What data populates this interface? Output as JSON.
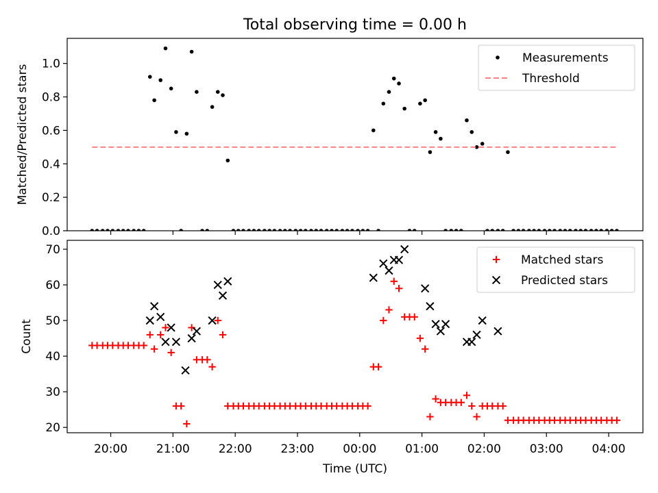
{
  "figure": {
    "title": "Total observing time = 0.00 h"
  },
  "chart_data": [
    {
      "type": "scatter",
      "ylabel": "Matched/Predicted stars",
      "xlabel": "",
      "ylim": [
        0,
        1.15
      ],
      "xlim": [
        -0.7,
        8.55
      ],
      "yticks": [
        0.0,
        0.2,
        0.4,
        0.6,
        0.8,
        1.0
      ],
      "ytick_labels": [
        "0.0",
        "0.2",
        "0.4",
        "0.6",
        "0.8",
        "1.0"
      ],
      "xticks": [
        0,
        1,
        2,
        3,
        4,
        5,
        6,
        7,
        8
      ],
      "legend": {
        "position": "top-right",
        "entries": [
          "Measurements",
          "Threshold"
        ]
      },
      "grid": false,
      "series": [
        {
          "name": "Measurements",
          "marker": "dot",
          "color": "#000000",
          "x": [
            -0.3,
            -0.22,
            -0.13,
            -0.05,
            0.03,
            0.12,
            0.2,
            0.28,
            0.37,
            0.45,
            0.53,
            0.63,
            0.7,
            0.8,
            0.88,
            0.97,
            1.05,
            1.13,
            1.22,
            1.3,
            1.38,
            1.47,
            1.55,
            1.63,
            1.72,
            1.8,
            1.88,
            1.97,
            2.05,
            2.13,
            2.22,
            2.3,
            2.38,
            2.47,
            2.55,
            2.63,
            2.72,
            2.8,
            2.88,
            2.97,
            3.05,
            3.13,
            3.22,
            3.3,
            3.38,
            3.47,
            3.55,
            3.63,
            3.72,
            3.8,
            3.88,
            3.97,
            4.05,
            4.13,
            4.22,
            4.3,
            4.38,
            4.47,
            4.55,
            4.63,
            4.72,
            4.8,
            4.88,
            4.97,
            5.05,
            5.13,
            5.22,
            5.3,
            5.38,
            5.47,
            5.55,
            5.63,
            5.72,
            5.8,
            5.88,
            5.97,
            6.05,
            6.13,
            6.22,
            6.3,
            6.38,
            6.47,
            6.55,
            6.63,
            6.72,
            6.8,
            6.88,
            6.97,
            7.05,
            7.13,
            7.22,
            7.3,
            7.38,
            7.47,
            7.55,
            7.63,
            7.72,
            7.8,
            7.88,
            7.97,
            8.05,
            8.13
          ],
          "y": [
            0.0,
            0.0,
            0.0,
            0.0,
            0.0,
            0.0,
            0.0,
            0.0,
            0.0,
            0.0,
            0.0,
            0.92,
            0.78,
            0.9,
            1.09,
            0.85,
            0.59,
            0.0,
            0.58,
            1.07,
            0.83,
            0.0,
            0.0,
            0.74,
            0.83,
            0.81,
            0.42,
            0.0,
            0.0,
            0.0,
            0.0,
            0.0,
            0.0,
            0.0,
            0.0,
            0.0,
            0.0,
            0.0,
            0.0,
            0.0,
            0.0,
            0.0,
            0.0,
            0.0,
            0.0,
            0.0,
            0.0,
            0.0,
            0.0,
            0.0,
            0.0,
            0.0,
            0.0,
            0.0,
            0.6,
            0.0,
            0.76,
            0.83,
            0.91,
            0.88,
            0.73,
            0.0,
            0.0,
            0.76,
            0.78,
            0.47,
            0.59,
            0.55,
            0.0,
            0.0,
            0.0,
            0.0,
            0.66,
            0.59,
            0.5,
            0.52,
            0.0,
            0.0,
            0.0,
            0.0,
            0.47,
            0.0,
            0.0,
            0.0,
            0.0,
            0.0,
            0.0,
            0.0,
            0.0,
            0.0,
            0.0,
            0.0,
            0.0,
            0.0,
            0.0,
            0.0,
            0.0,
            0.0,
            0.0,
            0.0,
            0.0,
            0.0
          ]
        },
        {
          "name": "Threshold",
          "style": "dashed",
          "color": "#ff8080",
          "x": [
            -0.3,
            8.13
          ],
          "y": [
            0.5,
            0.5
          ]
        }
      ]
    },
    {
      "type": "scatter",
      "ylabel": "Count",
      "xlabel": "Time (UTC)",
      "ylim": [
        18.5,
        72.5
      ],
      "xlim": [
        -0.7,
        8.55
      ],
      "yticks": [
        20,
        30,
        40,
        50,
        60,
        70
      ],
      "ytick_labels": [
        "20",
        "30",
        "40",
        "50",
        "60",
        "70"
      ],
      "xticks": [
        0,
        1,
        2,
        3,
        4,
        5,
        6,
        7,
        8
      ],
      "xtick_labels": [
        "20:00",
        "21:00",
        "22:00",
        "23:00",
        "00:00",
        "01:00",
        "02:00",
        "03:00",
        "04:00"
      ],
      "legend": {
        "position": "top-right",
        "entries": [
          "Matched stars",
          "Predicted stars"
        ]
      },
      "grid": false,
      "series": [
        {
          "name": "Matched stars",
          "marker": "plus",
          "color": "#ff0000",
          "x": [
            -0.3,
            -0.22,
            -0.13,
            -0.05,
            0.03,
            0.12,
            0.2,
            0.28,
            0.37,
            0.45,
            0.53,
            0.63,
            0.7,
            0.8,
            0.88,
            0.97,
            1.05,
            1.13,
            1.22,
            1.3,
            1.38,
            1.47,
            1.55,
            1.63,
            1.72,
            1.8,
            1.88,
            1.97,
            2.05,
            2.13,
            2.22,
            2.3,
            2.38,
            2.47,
            2.55,
            2.63,
            2.72,
            2.8,
            2.88,
            2.97,
            3.05,
            3.13,
            3.22,
            3.3,
            3.38,
            3.47,
            3.55,
            3.63,
            3.72,
            3.8,
            3.88,
            3.97,
            4.05,
            4.13,
            4.22,
            4.3,
            4.38,
            4.47,
            4.55,
            4.63,
            4.72,
            4.8,
            4.88,
            4.97,
            5.05,
            5.13,
            5.22,
            5.3,
            5.38,
            5.47,
            5.55,
            5.63,
            5.72,
            5.8,
            5.88,
            5.97,
            6.05,
            6.13,
            6.22,
            6.3,
            6.38,
            6.47,
            6.55,
            6.63,
            6.72,
            6.8,
            6.88,
            6.97,
            7.05,
            7.13,
            7.22,
            7.3,
            7.38,
            7.47,
            7.55,
            7.63,
            7.72,
            7.8,
            7.88,
            7.97,
            8.05,
            8.13
          ],
          "y": [
            43,
            43,
            43,
            43,
            43,
            43,
            43,
            43,
            43,
            43,
            43,
            46,
            42,
            46,
            48,
            41,
            26,
            26,
            21,
            48,
            39,
            39,
            39,
            37,
            50,
            46,
            26,
            26,
            26,
            26,
            26,
            26,
            26,
            26,
            26,
            26,
            26,
            26,
            26,
            26,
            26,
            26,
            26,
            26,
            26,
            26,
            26,
            26,
            26,
            26,
            26,
            26,
            26,
            26,
            37,
            37,
            50,
            53,
            61,
            59,
            51,
            51,
            51,
            45,
            42,
            23,
            28,
            27,
            27,
            27,
            27,
            27,
            29,
            26,
            23,
            26,
            26,
            26,
            26,
            26,
            22,
            22,
            22,
            22,
            22,
            22,
            22,
            22,
            22,
            22,
            22,
            22,
            22,
            22,
            22,
            22,
            22,
            22,
            22,
            22,
            22,
            22
          ]
        },
        {
          "name": "Predicted stars",
          "marker": "x",
          "color": "#000000",
          "x": [
            0.63,
            0.7,
            0.8,
            0.88,
            0.97,
            1.05,
            1.2,
            1.3,
            1.38,
            1.63,
            1.72,
            1.8,
            1.88,
            4.22,
            4.38,
            4.47,
            4.55,
            4.63,
            4.72,
            5.05,
            5.13,
            5.22,
            5.3,
            5.38,
            5.72,
            5.8,
            5.88,
            5.97,
            6.22
          ],
          "y": [
            50,
            54,
            51,
            44,
            48,
            44,
            36,
            45,
            47,
            50,
            60,
            57,
            61,
            62,
            66,
            64,
            67,
            67,
            70,
            59,
            54,
            49,
            47,
            49,
            44,
            44,
            46,
            50,
            47
          ]
        }
      ]
    }
  ]
}
